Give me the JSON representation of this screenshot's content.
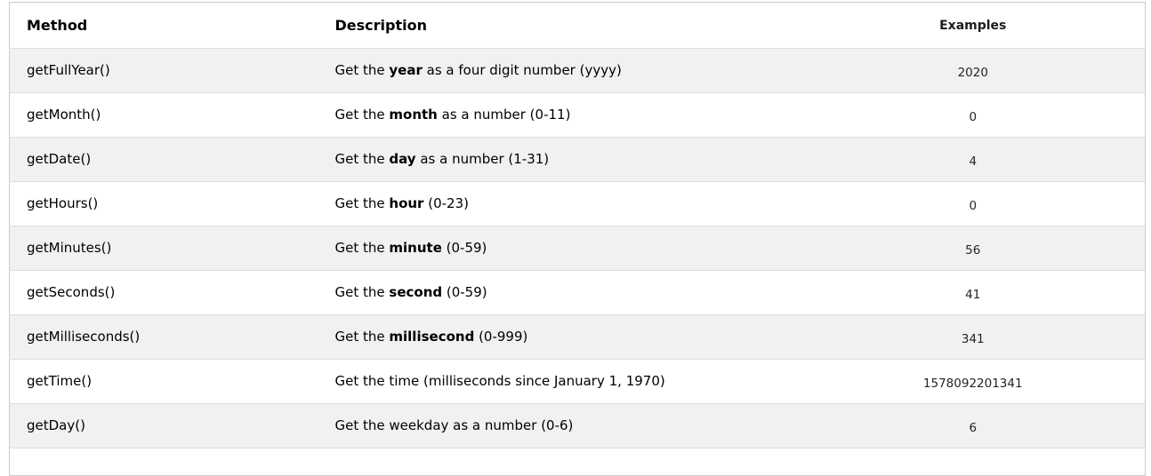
{
  "table": {
    "headers": [
      "Method",
      "Description",
      "Examples"
    ],
    "rows": [
      {
        "method": "getFullYear()",
        "desc_before": "Get the ",
        "desc_bold": "year",
        "desc_after": " as a four digit number (yyyy)",
        "example": "2020"
      },
      {
        "method": "getMonth()",
        "desc_before": "Get the ",
        "desc_bold": "month",
        "desc_after": " as a number (0-11)",
        "example": "0"
      },
      {
        "method": "getDate()",
        "desc_before": "Get the ",
        "desc_bold": "day",
        "desc_after": " as a number (1-31)",
        "example": "4"
      },
      {
        "method": "getHours()",
        "desc_before": "Get the ",
        "desc_bold": "hour",
        "desc_after": " (0-23)",
        "example": "0"
      },
      {
        "method": "getMinutes()",
        "desc_before": "Get the ",
        "desc_bold": "minute",
        "desc_after": " (0-59)",
        "example": "56"
      },
      {
        "method": "getSeconds()",
        "desc_before": "Get the ",
        "desc_bold": "second",
        "desc_after": " (0-59)",
        "example": "41"
      },
      {
        "method": "getMilliseconds()",
        "desc_before": "Get the ",
        "desc_bold": "millisecond",
        "desc_after": " (0-999)",
        "example": "341"
      },
      {
        "method": "getTime()",
        "desc_before": "Get the time (milliseconds since January 1, 1970)",
        "desc_bold": "",
        "desc_after": "",
        "example": "1578092201341"
      },
      {
        "method": "getDay()",
        "desc_before": "Get the weekday as a number (0-6)",
        "desc_bold": "",
        "desc_after": "",
        "example": "6"
      }
    ]
  },
  "colors": {
    "stripe_row": "#f1f1f1",
    "row_divider": "#dddddd",
    "outer_border": "#cccccc",
    "text": "#000000"
  }
}
